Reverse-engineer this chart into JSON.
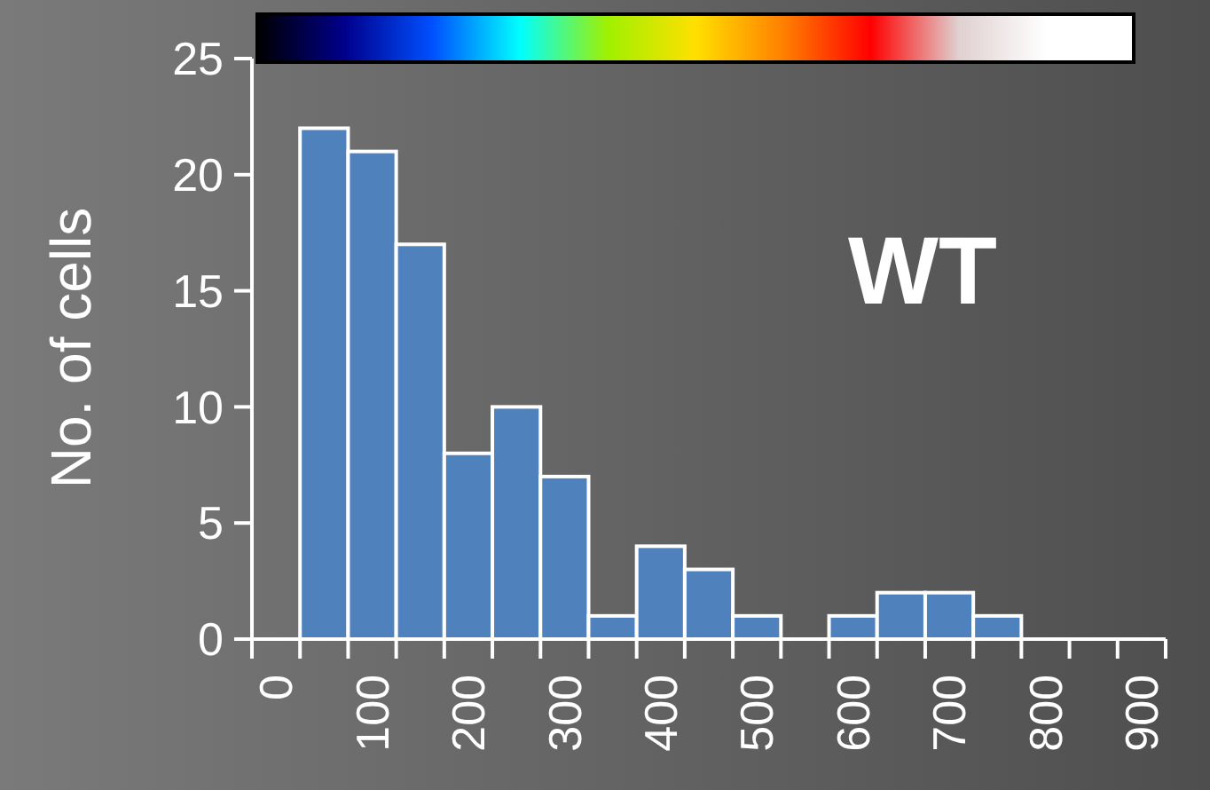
{
  "chart_data": {
    "type": "histogram",
    "ylabel": "No. of cells",
    "annotations": [
      "WT"
    ],
    "bins": [
      -25,
      25,
      75,
      125,
      175,
      225,
      275,
      325,
      375,
      425,
      475,
      525,
      575,
      625,
      675,
      725,
      775,
      825,
      875,
      925
    ],
    "values": [
      0,
      22,
      21,
      17,
      8,
      10,
      7,
      1,
      4,
      3,
      1,
      0,
      1,
      2,
      2,
      1,
      0,
      0,
      0
    ],
    "color": "#4f81bd",
    "xlim": [
      -25,
      925
    ],
    "xticks": [
      {
        "value": -25,
        "label": null
      },
      0,
      {
        "value": 25,
        "label": null
      },
      {
        "value": 75,
        "label": null
      },
      100,
      {
        "value": 125,
        "label": null
      },
      {
        "value": 175,
        "label": null
      },
      200,
      {
        "value": 225,
        "label": null
      },
      {
        "value": 275,
        "label": null
      },
      300,
      {
        "value": 325,
        "label": null
      },
      {
        "value": 375,
        "label": null
      },
      400,
      {
        "value": 425,
        "label": null
      },
      {
        "value": 475,
        "label": null
      },
      500,
      {
        "value": 525,
        "label": null
      },
      {
        "value": 575,
        "label": null
      },
      600,
      {
        "value": 625,
        "label": null
      },
      {
        "value": 675,
        "label": null
      },
      700,
      {
        "value": 725,
        "label": null
      },
      {
        "value": 775,
        "label": null
      },
      800,
      {
        "value": 825,
        "label": null
      },
      {
        "value": 875,
        "label": null
      },
      900,
      {
        "value": 925,
        "label": null
      }
    ],
    "ylim": [
      0,
      25
    ],
    "yticks": [
      0,
      5,
      10,
      15,
      20,
      25
    ],
    "grid": false
  }
}
